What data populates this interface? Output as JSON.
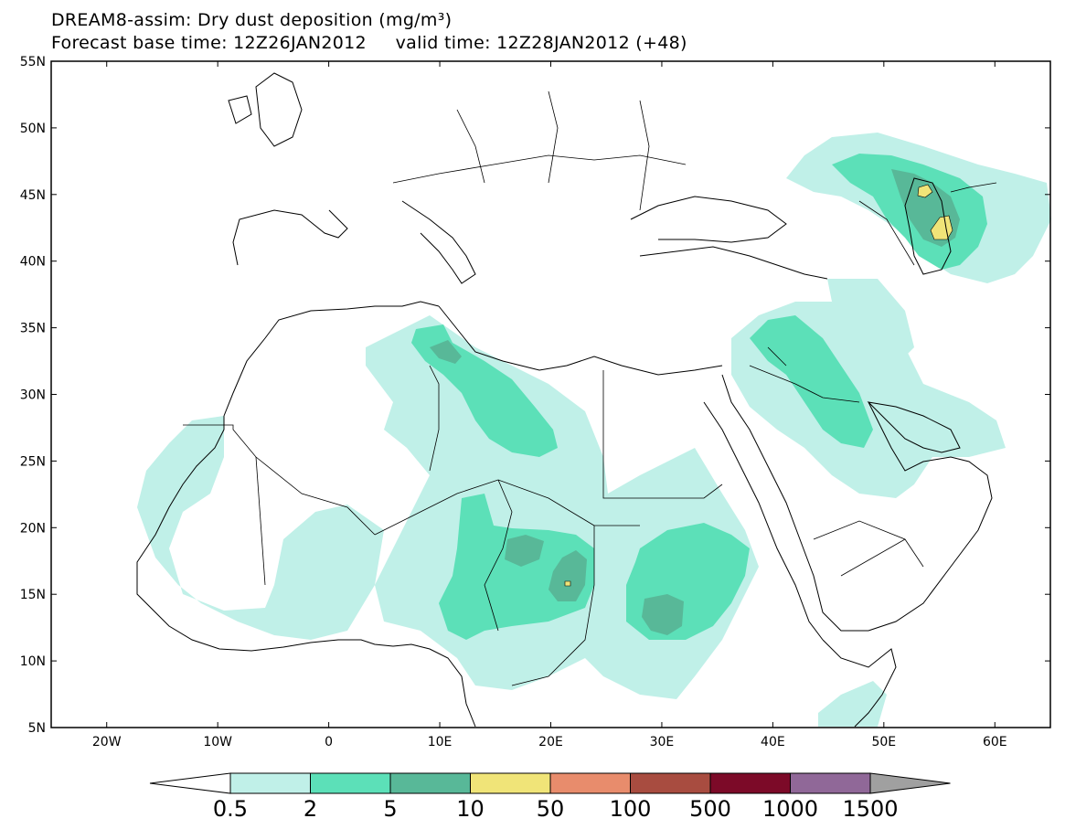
{
  "title": {
    "line1": "DREAM8-assim: Dry dust deposition (mg/m³)",
    "line2": "Forecast base time: 12Z26JAN2012     valid time: 12Z28JAN2012 (+48)"
  },
  "map": {
    "lon_range": [
      -25,
      65
    ],
    "lat_range": [
      5,
      55
    ],
    "lat_labels": [
      "55N",
      "50N",
      "45N",
      "40N",
      "35N",
      "30N",
      "25N",
      "20N",
      "15N",
      "10N",
      "5N"
    ],
    "lon_labels": [
      "20W",
      "10W",
      "0",
      "10E",
      "20E",
      "30E",
      "40E",
      "50E",
      "60E"
    ]
  },
  "colorbar": {
    "labels": [
      "0.5",
      "2",
      "5",
      "10",
      "50",
      "100",
      "500",
      "1000",
      "1500"
    ],
    "colors": [
      "#c0f0e8",
      "#5ce0b8",
      "#58b898",
      "#f0e478",
      "#e88c6c",
      "#a84c40",
      "#7c0a28",
      "#906898",
      "#a0a0a0"
    ]
  }
}
